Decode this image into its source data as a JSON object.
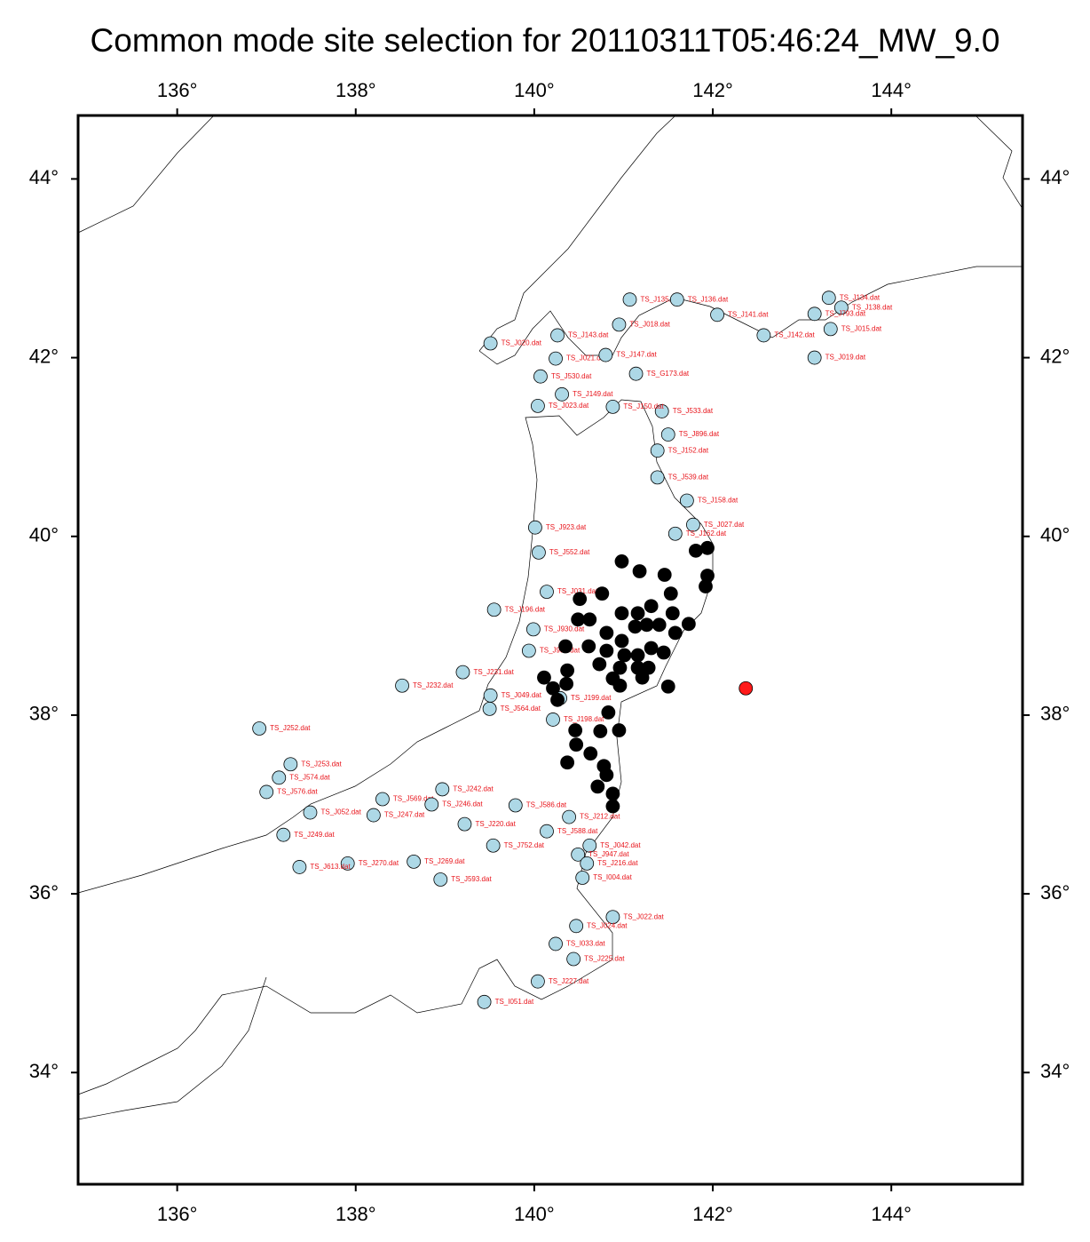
{
  "title": "Common mode site selection for 20110311T05:46:24_MW_9.0",
  "map": {
    "xlim": [
      134.89,
      145.47
    ],
    "ylim": [
      32.75,
      44.71
    ],
    "xticks": [
      {
        "value": 136,
        "label": "136°"
      },
      {
        "value": 138,
        "label": "138°"
      },
      {
        "value": 140,
        "label": "140°"
      },
      {
        "value": 142,
        "label": "142°"
      },
      {
        "value": 144,
        "label": "144°"
      }
    ],
    "yticks": [
      {
        "value": 34,
        "label": "34°"
      },
      {
        "value": 36,
        "label": "36°"
      },
      {
        "value": 38,
        "label": "38°"
      },
      {
        "value": 40,
        "label": "40°"
      },
      {
        "value": 42,
        "label": "42°"
      },
      {
        "value": 44,
        "label": "44°"
      }
    ],
    "station_color": "#add8e6",
    "selected_color": "#000000",
    "epicenter_color": "#ff1a1a",
    "label_color": "#e8141b",
    "stations": [
      {
        "name": "TS_J252.dat",
        "lon": 136.92,
        "lat": 37.85
      },
      {
        "name": "TS_J232.dat",
        "lon": 138.52,
        "lat": 38.33
      },
      {
        "name": "TS_J253.dat",
        "lon": 137.27,
        "lat": 37.45
      },
      {
        "name": "TS_J574.dat",
        "lon": 137.14,
        "lat": 37.3
      },
      {
        "name": "TS_J576.dat",
        "lon": 137.0,
        "lat": 37.14
      },
      {
        "name": "TS_J052.dat",
        "lon": 137.49,
        "lat": 36.91
      },
      {
        "name": "TS_J247.dat",
        "lon": 138.2,
        "lat": 36.88
      },
      {
        "name": "TS_J569.dat",
        "lon": 138.3,
        "lat": 37.06
      },
      {
        "name": "TS_J246.dat",
        "lon": 138.85,
        "lat": 37.0
      },
      {
        "name": "TS_J242.dat",
        "lon": 138.97,
        "lat": 37.17
      },
      {
        "name": "TS_J220.dat",
        "lon": 139.22,
        "lat": 36.78
      },
      {
        "name": "TS_J588.dat",
        "lon": 140.14,
        "lat": 36.7
      },
      {
        "name": "TS_J212.dat",
        "lon": 140.39,
        "lat": 36.86
      },
      {
        "name": "TS_J042.dat",
        "lon": 140.62,
        "lat": 36.54
      },
      {
        "name": "TS_J947.dat",
        "lon": 140.49,
        "lat": 36.44
      },
      {
        "name": "TS_J216.dat",
        "lon": 140.59,
        "lat": 36.34
      },
      {
        "name": "TS_I004.dat",
        "lon": 140.54,
        "lat": 36.18
      },
      {
        "name": "TS_J022.dat",
        "lon": 140.88,
        "lat": 35.74
      },
      {
        "name": "TS_J024.dat",
        "lon": 140.47,
        "lat": 35.64
      },
      {
        "name": "TS_I033.dat",
        "lon": 140.24,
        "lat": 35.44
      },
      {
        "name": "TS_J225.dat",
        "lon": 140.44,
        "lat": 35.27
      },
      {
        "name": "TS_J227.dat",
        "lon": 140.04,
        "lat": 35.02
      },
      {
        "name": "TS_I051.dat",
        "lon": 139.44,
        "lat": 34.79
      },
      {
        "name": "TS_J593.dat",
        "lon": 138.95,
        "lat": 36.16
      },
      {
        "name": "TS_J269.dat",
        "lon": 138.65,
        "lat": 36.36
      },
      {
        "name": "TS_J270.dat",
        "lon": 137.91,
        "lat": 36.34
      },
      {
        "name": "TS_J613.dat",
        "lon": 137.37,
        "lat": 36.3
      },
      {
        "name": "TS_J249.dat",
        "lon": 137.19,
        "lat": 36.66
      },
      {
        "name": "TS_J752.dat",
        "lon": 139.54,
        "lat": 36.54
      },
      {
        "name": "TS_J586.dat",
        "lon": 139.79,
        "lat": 36.99
      },
      {
        "name": "TS_J564.dat",
        "lon": 139.5,
        "lat": 38.07
      },
      {
        "name": "TS_J049.dat",
        "lon": 139.51,
        "lat": 38.22
      },
      {
        "name": "TS_J231.dat",
        "lon": 139.2,
        "lat": 38.48
      },
      {
        "name": "TS_J199.dat",
        "lon": 140.29,
        "lat": 38.19
      },
      {
        "name": "TS_J198.dat",
        "lon": 140.21,
        "lat": 37.95
      },
      {
        "name": "TS_J932.dat",
        "lon": 139.94,
        "lat": 38.72
      },
      {
        "name": "TS_J930.dat",
        "lon": 139.99,
        "lat": 38.96
      },
      {
        "name": "TS_J196.dat",
        "lon": 139.55,
        "lat": 39.18
      },
      {
        "name": "TS_J031.dat",
        "lon": 140.14,
        "lat": 39.38
      },
      {
        "name": "TS_J552.dat",
        "lon": 140.05,
        "lat": 39.82
      },
      {
        "name": "TS_J923.dat",
        "lon": 140.01,
        "lat": 40.1
      },
      {
        "name": "TS_J027.dat",
        "lon": 141.78,
        "lat": 40.13
      },
      {
        "name": "TS_J162.dat",
        "lon": 141.58,
        "lat": 40.03
      },
      {
        "name": "TS_J158.dat",
        "lon": 141.71,
        "lat": 40.4
      },
      {
        "name": "TS_J152.dat",
        "lon": 141.38,
        "lat": 40.96
      },
      {
        "name": "TS_J539.dat",
        "lon": 141.38,
        "lat": 40.66
      },
      {
        "name": "TS_J896.dat",
        "lon": 141.5,
        "lat": 41.14
      },
      {
        "name": "TS_J533.dat",
        "lon": 141.43,
        "lat": 41.4
      },
      {
        "name": "TS_J150.dat",
        "lon": 140.88,
        "lat": 41.45
      },
      {
        "name": "TS_J023.dat",
        "lon": 140.04,
        "lat": 41.46
      },
      {
        "name": "TS_J149.dat",
        "lon": 140.31,
        "lat": 41.59
      },
      {
        "name": "TS_J530.dat",
        "lon": 140.07,
        "lat": 41.79
      },
      {
        "name": "TS_J021.dat",
        "lon": 140.24,
        "lat": 41.99
      },
      {
        "name": "TS_J147.dat",
        "lon": 140.8,
        "lat": 42.03
      },
      {
        "name": "TS_G173.dat",
        "lon": 141.14,
        "lat": 41.82
      },
      {
        "name": "TS_J020.dat",
        "lon": 139.51,
        "lat": 42.16
      },
      {
        "name": "TS_J143.dat",
        "lon": 140.26,
        "lat": 42.25
      },
      {
        "name": "TS_J018.dat",
        "lon": 140.95,
        "lat": 42.37
      },
      {
        "name": "TS_J135.dat",
        "lon": 141.07,
        "lat": 42.65
      },
      {
        "name": "TS_J136.dat",
        "lon": 141.6,
        "lat": 42.65
      },
      {
        "name": "TS_J141.dat",
        "lon": 142.05,
        "lat": 42.48
      },
      {
        "name": "TS_J142.dat",
        "lon": 142.57,
        "lat": 42.25
      },
      {
        "name": "TS_J019.dat",
        "lon": 143.14,
        "lat": 42.0
      },
      {
        "name": "TS_J015.dat",
        "lon": 143.32,
        "lat": 42.32
      },
      {
        "name": "TS_J138.dat",
        "lon": 143.44,
        "lat": 42.56
      },
      {
        "name": "TS_J793.dat",
        "lon": 143.14,
        "lat": 42.49
      },
      {
        "name": "TS_J134.dat",
        "lon": 143.3,
        "lat": 42.67
      }
    ],
    "selected_sites": [
      {
        "lon": 141.94,
        "lat": 39.87
      },
      {
        "lon": 141.81,
        "lat": 39.84
      },
      {
        "lon": 141.94,
        "lat": 39.56
      },
      {
        "lon": 141.92,
        "lat": 39.44
      },
      {
        "lon": 141.46,
        "lat": 39.57
      },
      {
        "lon": 141.18,
        "lat": 39.61
      },
      {
        "lon": 140.98,
        "lat": 39.72
      },
      {
        "lon": 141.53,
        "lat": 39.36
      },
      {
        "lon": 141.31,
        "lat": 39.22
      },
      {
        "lon": 141.55,
        "lat": 39.14
      },
      {
        "lon": 140.98,
        "lat": 39.14
      },
      {
        "lon": 141.16,
        "lat": 39.14
      },
      {
        "lon": 141.26,
        "lat": 39.01
      },
      {
        "lon": 140.76,
        "lat": 39.36
      },
      {
        "lon": 140.51,
        "lat": 39.3
      },
      {
        "lon": 140.49,
        "lat": 39.07
      },
      {
        "lon": 140.62,
        "lat": 39.07
      },
      {
        "lon": 140.35,
        "lat": 38.77
      },
      {
        "lon": 140.61,
        "lat": 38.77
      },
      {
        "lon": 140.81,
        "lat": 38.92
      },
      {
        "lon": 140.98,
        "lat": 38.83
      },
      {
        "lon": 141.13,
        "lat": 38.99
      },
      {
        "lon": 141.4,
        "lat": 39.01
      },
      {
        "lon": 141.73,
        "lat": 39.02
      },
      {
        "lon": 141.58,
        "lat": 38.92
      },
      {
        "lon": 140.81,
        "lat": 38.72
      },
      {
        "lon": 141.01,
        "lat": 38.67
      },
      {
        "lon": 141.16,
        "lat": 38.67
      },
      {
        "lon": 141.31,
        "lat": 38.75
      },
      {
        "lon": 141.45,
        "lat": 38.7
      },
      {
        "lon": 140.73,
        "lat": 38.57
      },
      {
        "lon": 140.96,
        "lat": 38.53
      },
      {
        "lon": 141.16,
        "lat": 38.53
      },
      {
        "lon": 141.28,
        "lat": 38.53
      },
      {
        "lon": 140.88,
        "lat": 38.41
      },
      {
        "lon": 141.21,
        "lat": 38.42
      },
      {
        "lon": 141.5,
        "lat": 38.32
      },
      {
        "lon": 140.96,
        "lat": 38.33
      },
      {
        "lon": 140.11,
        "lat": 38.42
      },
      {
        "lon": 140.37,
        "lat": 38.5
      },
      {
        "lon": 140.36,
        "lat": 38.35
      },
      {
        "lon": 140.21,
        "lat": 38.3
      },
      {
        "lon": 140.26,
        "lat": 38.17
      },
      {
        "lon": 140.83,
        "lat": 38.03
      },
      {
        "lon": 140.95,
        "lat": 37.83
      },
      {
        "lon": 140.74,
        "lat": 37.82
      },
      {
        "lon": 140.46,
        "lat": 37.83
      },
      {
        "lon": 140.47,
        "lat": 37.67
      },
      {
        "lon": 140.63,
        "lat": 37.57
      },
      {
        "lon": 140.37,
        "lat": 37.47
      },
      {
        "lon": 140.78,
        "lat": 37.43
      },
      {
        "lon": 140.81,
        "lat": 37.33
      },
      {
        "lon": 140.71,
        "lat": 37.2
      },
      {
        "lon": 140.88,
        "lat": 37.12
      },
      {
        "lon": 140.88,
        "lat": 36.98
      }
    ],
    "epicenter": {
      "lon": 142.37,
      "lat": 38.3
    }
  }
}
